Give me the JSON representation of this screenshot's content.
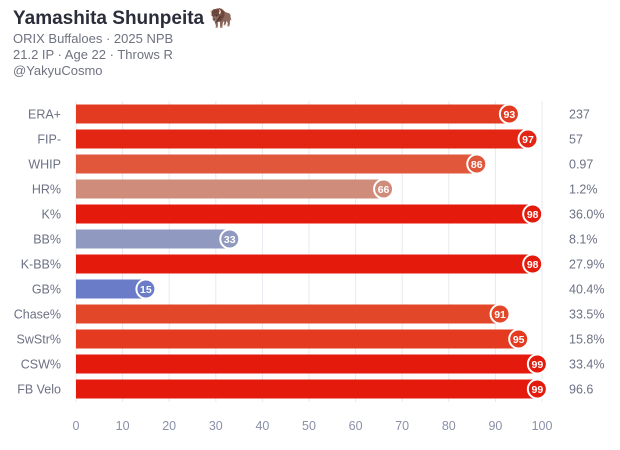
{
  "header": {
    "title": "Yamashita Shunpeita",
    "title_icon": "bison-emoji",
    "line1": "ORIX Buffaloes · 2025 NPB",
    "line2": "21.2 IP · Age 22 · Throws R",
    "line3": "@YakyuCosmo"
  },
  "chart_data": {
    "type": "bar",
    "orientation": "horizontal",
    "xlim": [
      0,
      100
    ],
    "xticks": [
      "0",
      "10",
      "20",
      "30",
      "40",
      "50",
      "60",
      "70",
      "80",
      "90",
      "100"
    ],
    "grid": true,
    "categories": [
      "ERA+",
      "FIP-",
      "WHIP",
      "HR%",
      "K%",
      "BB%",
      "K-BB%",
      "GB%",
      "Chase%",
      "SwStr%",
      "CSW%",
      "FB Velo"
    ],
    "values": [
      93,
      97,
      86,
      66,
      98,
      33,
      98,
      15,
      91,
      95,
      99,
      99
    ],
    "stat_values": [
      "237",
      "57",
      "0.97",
      "1.2%",
      "36.0%",
      "8.1%",
      "27.9%",
      "40.4%",
      "33.5%",
      "15.8%",
      "33.4%",
      "96.6"
    ],
    "colors": [
      "#e33b22",
      "#e32613",
      "#e0573c",
      "#cf8c7a",
      "#e31a0c",
      "#9099bf",
      "#e31a0c",
      "#6a7bc7",
      "#e3472a",
      "#e33a20",
      "#e31a0c",
      "#e31a0c"
    ]
  }
}
